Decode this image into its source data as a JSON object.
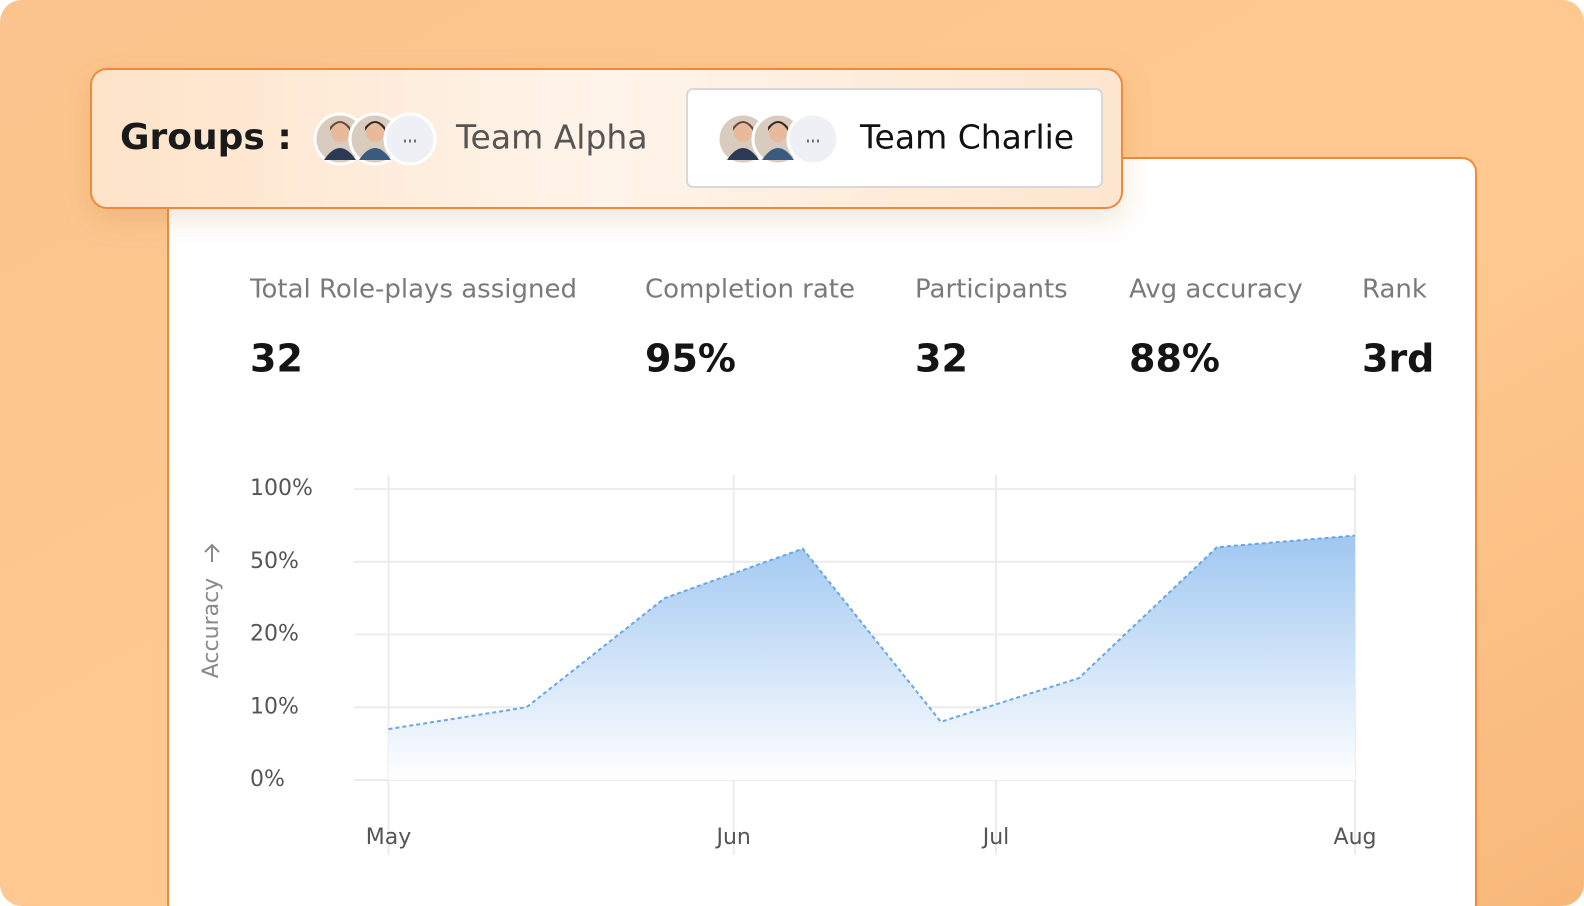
{
  "groups": {
    "label": "Groups :",
    "teams": [
      "Team Alpha",
      "Team Charlie"
    ],
    "selected_index": 1
  },
  "stats": [
    {
      "label": "Total Role-plays assigned",
      "value": "32"
    },
    {
      "label": "Completion rate",
      "value": "95%"
    },
    {
      "label": "Participants",
      "value": "32"
    },
    {
      "label": "Avg accuracy",
      "value": "88%"
    },
    {
      "label": "Rank",
      "value": "3rd"
    }
  ],
  "chart_data": {
    "type": "area",
    "y_label": "Accuracy",
    "color": "#6aa6e6",
    "x": [
      0,
      1,
      2,
      3,
      4,
      5,
      6,
      7
    ],
    "values": [
      7,
      10,
      35,
      59,
      8,
      14,
      60,
      68
    ],
    "xlim": [
      -0.25,
      7
    ],
    "xticks": [
      {
        "value": 0,
        "label": "May"
      },
      {
        "value": 2.5,
        "label": "Jun"
      },
      {
        "value": 4.4,
        "label": "Jul"
      },
      {
        "value": 7,
        "label": "Aug"
      }
    ],
    "ylim": [
      0,
      100
    ],
    "yticks": [
      {
        "value": 0,
        "label": "0%"
      },
      {
        "value": 10,
        "label": "10%"
      },
      {
        "value": 20,
        "label": "20%"
      },
      {
        "value": 50,
        "label": "50%"
      },
      {
        "value": 100,
        "label": "100%"
      }
    ],
    "grid": true
  }
}
